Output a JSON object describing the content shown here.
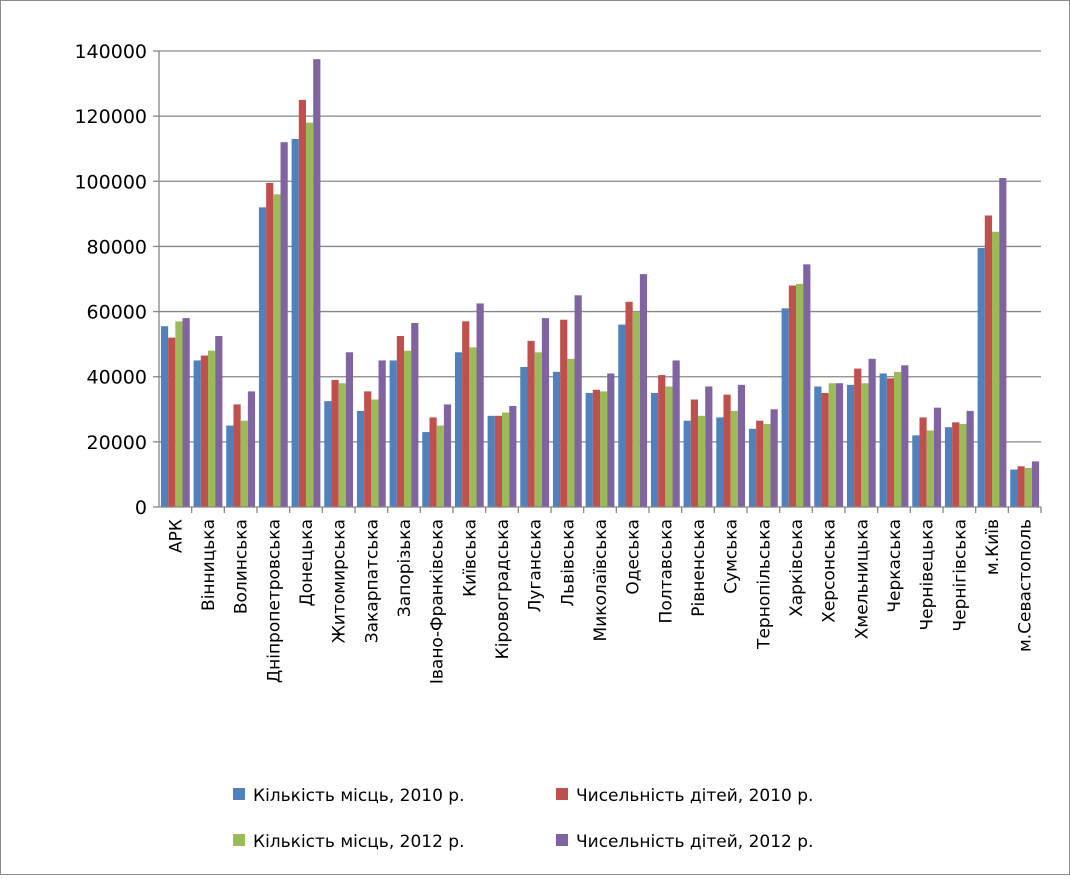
{
  "chart_data": {
    "type": "bar",
    "title": "",
    "xlabel": "",
    "ylabel": "",
    "ylim": [
      0,
      140000
    ],
    "yticks": [
      0,
      20000,
      40000,
      60000,
      80000,
      100000,
      120000,
      140000
    ],
    "grid": true,
    "legend_position": "bottom",
    "categories": [
      "АРК",
      "Вінницька",
      "Волинська",
      "Дніпропетровська",
      "Донецька",
      "Житомирська",
      "Закарпатська",
      "Запорізька",
      "Івано-Франківська",
      "Київська",
      "Кіровоградська",
      "Луганська",
      "Львівська",
      "Миколаївська",
      "Одеська",
      "Полтавська",
      "Рівненська",
      "Сумська",
      "Тернопільська",
      "Харківська",
      "Херсонська",
      "Хмельницька",
      "Черкаська",
      "Чернівецька",
      "Чернігівська",
      "м.Київ",
      "м.Севастополь"
    ],
    "series": [
      {
        "name": "Кількість місць, 2010 р.",
        "color": "#4f81bd",
        "values": [
          55500,
          45000,
          25000,
          92000,
          113000,
          32500,
          29500,
          45000,
          23000,
          47500,
          28000,
          43000,
          41500,
          35000,
          56000,
          35000,
          26500,
          27500,
          24000,
          61000,
          37000,
          37500,
          41000,
          22000,
          24500,
          79500,
          11500
        ]
      },
      {
        "name": "Чисельність дітей, 2010 р.",
        "color": "#c0504d",
        "values": [
          52000,
          46500,
          31500,
          99500,
          125000,
          39000,
          35500,
          52500,
          27500,
          57000,
          28000,
          51000,
          57500,
          36000,
          63000,
          40500,
          33000,
          34500,
          26500,
          68000,
          35000,
          42500,
          39500,
          27500,
          26000,
          89500,
          12500
        ]
      },
      {
        "name": "Кількість місць, 2012 р.",
        "color": "#9bbb59",
        "values": [
          57000,
          48000,
          26500,
          96000,
          118000,
          38000,
          33000,
          48000,
          25000,
          49000,
          29000,
          47500,
          45500,
          35500,
          60000,
          37000,
          28000,
          29500,
          25500,
          68500,
          38000,
          38000,
          41500,
          23500,
          25500,
          84500,
          12000
        ]
      },
      {
        "name": "Чисельність дітей, 2012 р.",
        "color": "#8064a2",
        "values": [
          58000,
          52500,
          35500,
          112000,
          137500,
          47500,
          45000,
          56500,
          31500,
          62500,
          31000,
          58000,
          65000,
          41000,
          71500,
          45000,
          37000,
          37500,
          30000,
          74500,
          38000,
          45500,
          43500,
          30500,
          29500,
          101000,
          14000
        ]
      }
    ]
  }
}
